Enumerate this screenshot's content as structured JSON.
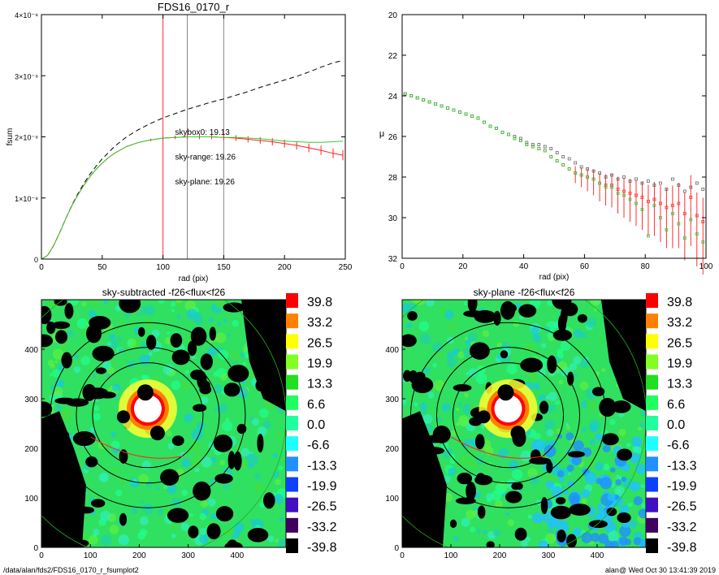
{
  "chart_data": [
    {
      "type": "line",
      "title": "FDS16_0170_r",
      "xlabel": "rad (pix)",
      "ylabel": "fsum",
      "xlim": [
        0,
        250
      ],
      "ylim": [
        0,
        4e-08
      ],
      "xticks": [
        "0",
        "50",
        "100",
        "150",
        "200",
        "250"
      ],
      "yticks": [
        "0",
        "1×10⁻⁸",
        "2×10⁻⁸",
        "3×10⁻⁸",
        "4×10⁻⁸"
      ],
      "vlines": [
        {
          "x": 100,
          "color": "#ff3030"
        },
        {
          "x": 120,
          "color": "#888888"
        },
        {
          "x": 150,
          "color": "#888888"
        }
      ],
      "annotations": [
        {
          "text": "skybox0: 19.13",
          "color": "#000000",
          "x": 110,
          "y": 2.03e-08
        },
        {
          "text": "sky-range: 19.26",
          "color": "#ff2020",
          "x": 110,
          "y": 1.63e-08
        },
        {
          "text": "sky-plane: 19.26",
          "color": "#33cc33",
          "x": 110,
          "y": 1.22e-08
        }
      ],
      "series": [
        {
          "color": "#000000",
          "style": "dashed",
          "x": [
            0,
            5,
            10,
            15,
            20,
            25,
            30,
            35,
            40,
            45,
            50,
            55,
            60,
            70,
            80,
            90,
            100,
            110,
            120,
            130,
            140,
            150,
            160,
            170,
            180,
            190,
            200,
            210,
            220,
            230,
            240,
            248
          ],
          "y": [
            0,
            6e-10,
            2.2e-09,
            4.3e-09,
            6.6e-09,
            8.8e-09,
            1.07e-08,
            1.24e-08,
            1.39e-08,
            1.52e-08,
            1.64e-08,
            1.74e-08,
            1.84e-08,
            2e-08,
            2.12e-08,
            2.22e-08,
            2.31e-08,
            2.38e-08,
            2.45e-08,
            2.51e-08,
            2.57e-08,
            2.62e-08,
            2.68e-08,
            2.74e-08,
            2.81e-08,
            2.87e-08,
            2.93e-08,
            2.99e-08,
            3.06e-08,
            3.14e-08,
            3.21e-08,
            3.25e-08
          ]
        },
        {
          "color": "#ff2020",
          "style": "solid",
          "x": [
            0,
            5,
            10,
            15,
            20,
            25,
            30,
            35,
            40,
            45,
            50,
            55,
            60,
            70,
            80,
            90,
            100,
            110,
            120,
            130,
            140,
            150,
            160,
            170,
            180,
            190,
            200,
            210,
            220,
            230,
            240,
            248
          ],
          "y": [
            0,
            6e-10,
            2.2e-09,
            4.3e-09,
            6.6e-09,
            8.7e-09,
            1.05e-08,
            1.21e-08,
            1.35e-08,
            1.47e-08,
            1.57e-08,
            1.66e-08,
            1.73e-08,
            1.84e-08,
            1.91e-08,
            1.95e-08,
            1.98e-08,
            1.99e-08,
            2e-08,
            2e-08,
            2e-08,
            1.99e-08,
            1.98e-08,
            1.96e-08,
            1.94e-08,
            1.92e-08,
            1.89e-08,
            1.86e-08,
            1.82e-08,
            1.78e-08,
            1.73e-08,
            1.7e-08
          ]
        },
        {
          "color": "#33cc33",
          "style": "solid",
          "x": [
            0,
            5,
            10,
            15,
            20,
            25,
            30,
            35,
            40,
            45,
            50,
            55,
            60,
            70,
            80,
            90,
            100,
            110,
            120,
            130,
            140,
            150,
            160,
            170,
            180,
            190,
            200,
            210,
            220,
            230,
            240,
            248
          ],
          "y": [
            0,
            6e-10,
            2.2e-09,
            4.3e-09,
            6.6e-09,
            8.7e-09,
            1.05e-08,
            1.21e-08,
            1.35e-08,
            1.47e-08,
            1.57e-08,
            1.66e-08,
            1.73e-08,
            1.84e-08,
            1.91e-08,
            1.95e-08,
            1.98e-08,
            1.99e-08,
            2e-08,
            2e-08,
            2e-08,
            1.99e-08,
            1.99e-08,
            1.98e-08,
            1.97e-08,
            1.95e-08,
            1.93e-08,
            1.92e-08,
            1.91e-08,
            1.91e-08,
            1.92e-08,
            1.93e-08
          ]
        }
      ]
    },
    {
      "type": "scatter",
      "title": "",
      "xlabel": "rad (pix)",
      "ylabel": "μ",
      "xlim": [
        0,
        100
      ],
      "ylim": [
        32,
        20
      ],
      "xticks": [
        "0",
        "20",
        "40",
        "60",
        "80",
        "100"
      ],
      "yticks": [
        "20",
        "22",
        "24",
        "26",
        "28",
        "30",
        "32"
      ],
      "series": [
        {
          "color": "#ff3030",
          "x": [
            1,
            3,
            5,
            7,
            9,
            11,
            13,
            15,
            17,
            19,
            21,
            23,
            25,
            27,
            29,
            31,
            33,
            35,
            37,
            39,
            41,
            43,
            45,
            47,
            49,
            51,
            53,
            55,
            57,
            59,
            61,
            63,
            65,
            67,
            69,
            71,
            73,
            75,
            77,
            79,
            81,
            83,
            85,
            87,
            89,
            91,
            93,
            95,
            97,
            99
          ],
          "y": [
            23.9,
            24.0,
            24.1,
            24.2,
            24.3,
            24.4,
            24.5,
            24.6,
            24.7,
            24.8,
            24.9,
            25.0,
            25.1,
            25.3,
            25.5,
            25.6,
            25.8,
            25.9,
            26.1,
            26.2,
            26.4,
            26.5,
            26.6,
            26.7,
            27.0,
            27.2,
            27.4,
            27.6,
            27.8,
            27.9,
            28.0,
            28.1,
            28.3,
            28.4,
            28.4,
            28.6,
            28.7,
            28.8,
            28.9,
            29.0,
            29.2,
            29.1,
            29.3,
            29.5,
            29.4,
            29.3,
            29.8,
            29.0,
            29.9,
            30.2
          ]
        },
        {
          "color": "#666666",
          "x": [
            1,
            3,
            5,
            7,
            9,
            11,
            13,
            15,
            17,
            19,
            21,
            23,
            25,
            27,
            29,
            31,
            33,
            35,
            37,
            39,
            41,
            43,
            45,
            47,
            49,
            51,
            53,
            55,
            57,
            59,
            61,
            63,
            65,
            67,
            69,
            71,
            73,
            75,
            77,
            79,
            81,
            83,
            85,
            87,
            89,
            91,
            93,
            95,
            97,
            99
          ],
          "y": [
            23.9,
            24.0,
            24.1,
            24.2,
            24.3,
            24.4,
            24.5,
            24.6,
            24.7,
            24.8,
            24.9,
            25.0,
            25.1,
            25.3,
            25.5,
            25.6,
            25.8,
            25.9,
            26.0,
            26.1,
            26.3,
            26.4,
            26.4,
            26.5,
            26.6,
            26.8,
            27.0,
            27.1,
            27.3,
            27.5,
            27.6,
            27.7,
            27.8,
            28.0,
            27.9,
            28.1,
            28.0,
            28.2,
            28.1,
            28.3,
            28.2,
            28.4,
            28.3,
            28.6,
            28.1,
            28.4,
            28.7,
            28.5,
            28.3,
            28.6
          ]
        },
        {
          "color": "#33cc33",
          "x": [
            1,
            3,
            5,
            7,
            9,
            11,
            13,
            15,
            17,
            19,
            21,
            23,
            25,
            27,
            29,
            31,
            33,
            35,
            37,
            39,
            41,
            43,
            45,
            47,
            49,
            51,
            53,
            55,
            57,
            59,
            61,
            63,
            65,
            67,
            69,
            71,
            73,
            75,
            77,
            79,
            81,
            83,
            85,
            87,
            89,
            91,
            93,
            95,
            97,
            99
          ],
          "y": [
            23.9,
            24.0,
            24.1,
            24.2,
            24.3,
            24.4,
            24.5,
            24.6,
            24.7,
            24.8,
            24.9,
            25.0,
            25.1,
            25.3,
            25.5,
            25.6,
            25.8,
            25.9,
            26.1,
            26.2,
            26.4,
            26.5,
            26.6,
            26.7,
            27.0,
            27.2,
            27.4,
            27.6,
            27.8,
            27.9,
            28.0,
            28.1,
            28.3,
            28.5,
            28.5,
            28.8,
            28.9,
            29.1,
            29.3,
            29.6,
            30.9,
            29.4,
            30.0,
            30.6,
            29.8,
            30.3,
            31.0,
            30.1,
            30.8,
            31.2
          ]
        }
      ]
    },
    {
      "type": "heatmap",
      "title": "sky-subtracted -f26<flux<f26",
      "xlim": [
        0,
        500
      ],
      "ylim": [
        0,
        500
      ],
      "xticks": [
        "0",
        "100",
        "200",
        "300",
        "400"
      ],
      "yticks": [
        "0",
        "100",
        "200",
        "300",
        "400"
      ],
      "colorbar": [
        "39.8",
        "33.2",
        "26.5",
        "19.9",
        "13.3",
        "6.6",
        "0.0",
        "-6.6",
        "-13.3",
        "-19.9",
        "-26.5",
        "-33.2",
        "-39.8"
      ]
    },
    {
      "type": "heatmap",
      "title": "sky-plane -f26<flux<f26",
      "xlim": [
        0,
        500
      ],
      "ylim": [
        0,
        500
      ],
      "xticks": [
        "0",
        "100",
        "200",
        "300",
        "400"
      ],
      "yticks": [
        "0",
        "100",
        "200",
        "300",
        "400"
      ],
      "colorbar": [
        "39.8",
        "33.2",
        "26.5",
        "19.9",
        "13.3",
        "6.6",
        "0.0",
        "-6.6",
        "-13.3",
        "-19.9",
        "-26.5",
        "-33.2",
        "-39.8"
      ]
    }
  ],
  "colorbar_colors": [
    "#ff0000",
    "#ff8000",
    "#ffff00",
    "#80ff20",
    "#20e020",
    "#20ff60",
    "#20ffa0",
    "#20ffff",
    "#2090ff",
    "#1040ff",
    "#4010c0",
    "#400060",
    "#000000"
  ],
  "footer": {
    "path": "/data/alan/fds2/FDS16_0170_r_fsumplot2",
    "stamp": "alan@  Wed Oct 30 13:41:39 2019"
  }
}
